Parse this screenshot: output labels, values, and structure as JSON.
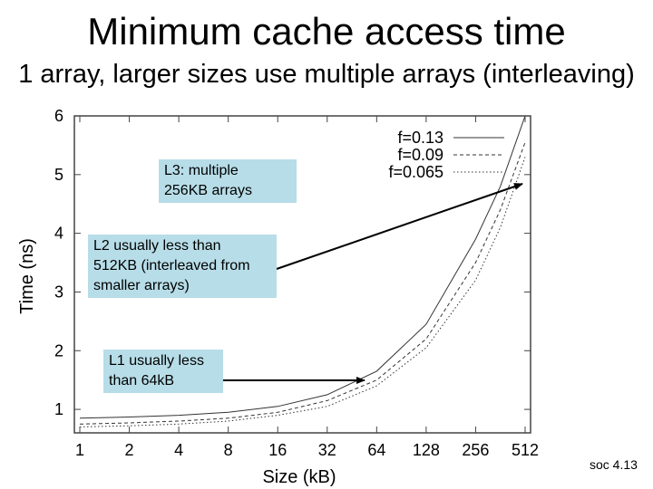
{
  "slide": {
    "title": "Minimum cache access time",
    "subtitle": "1 array, larger sizes use multiple arrays (interleaving)",
    "footer": "soc 4.13"
  },
  "callouts": [
    {
      "id": "l3",
      "text": "L3: multiple\n256KB arrays"
    },
    {
      "id": "l2",
      "text": "L2 usually less than\n512KB (interleaved from\nsmaller arrays)"
    },
    {
      "id": "l1",
      "text": "L1 usually less\nthan 64kB"
    }
  ],
  "chart_data": {
    "type": "line",
    "xlabel": "Size (kB)",
    "ylabel": "Time (ns)",
    "x_scale": "log2",
    "x_ticks": [
      1,
      2,
      4,
      8,
      16,
      32,
      64,
      128,
      256,
      512
    ],
    "y_ticks": [
      1,
      2,
      3,
      4,
      5,
      6
    ],
    "ylim": [
      0.6,
      6
    ],
    "grid": false,
    "legend_position": "top-right",
    "x": [
      1,
      2,
      4,
      8,
      16,
      32,
      64,
      128,
      256,
      362,
      512
    ],
    "series": [
      {
        "name": "f=0.13",
        "style": "solid",
        "values": [
          0.85,
          0.87,
          0.9,
          0.95,
          1.05,
          1.25,
          1.65,
          2.45,
          3.9,
          4.8,
          6.0
        ]
      },
      {
        "name": "f=0.09",
        "style": "dashed",
        "values": [
          0.75,
          0.77,
          0.8,
          0.85,
          0.95,
          1.15,
          1.5,
          2.2,
          3.5,
          4.4,
          5.55
        ]
      },
      {
        "name": "f=0.065",
        "style": "dotted",
        "values": [
          0.7,
          0.72,
          0.75,
          0.8,
          0.9,
          1.05,
          1.4,
          2.05,
          3.2,
          4.1,
          5.3
        ]
      }
    ]
  }
}
